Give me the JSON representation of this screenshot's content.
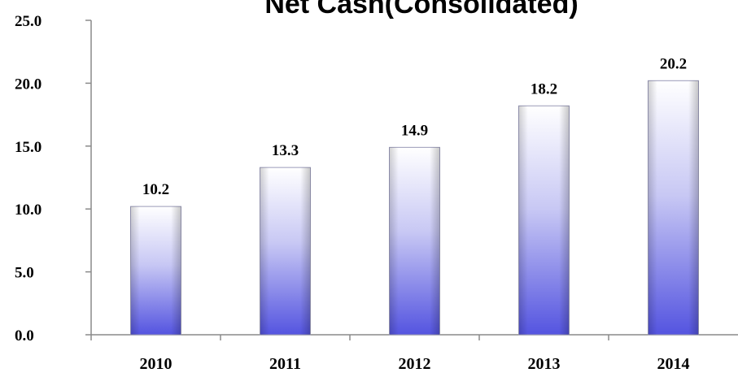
{
  "chart_data": {
    "type": "bar",
    "title": "Net Cash(Consolidated)",
    "categories": [
      "2010",
      "2011",
      "2012",
      "2013",
      "2014"
    ],
    "values": [
      10.2,
      13.3,
      14.9,
      18.2,
      20.2
    ],
    "data_labels": [
      "10.2",
      "13.3",
      "14.9",
      "18.2",
      "20.2"
    ],
    "y_ticks": [
      "0.0",
      "5.0",
      "10.0",
      "15.0",
      "20.0",
      "25.0"
    ],
    "ylim": [
      0,
      25
    ],
    "grid": false,
    "legend": "none",
    "bar_colors": {
      "top": "#ffffff",
      "mid": "#c8c8f4",
      "bottom": "#5454e0"
    },
    "axis_color": "#8a8a8a"
  }
}
